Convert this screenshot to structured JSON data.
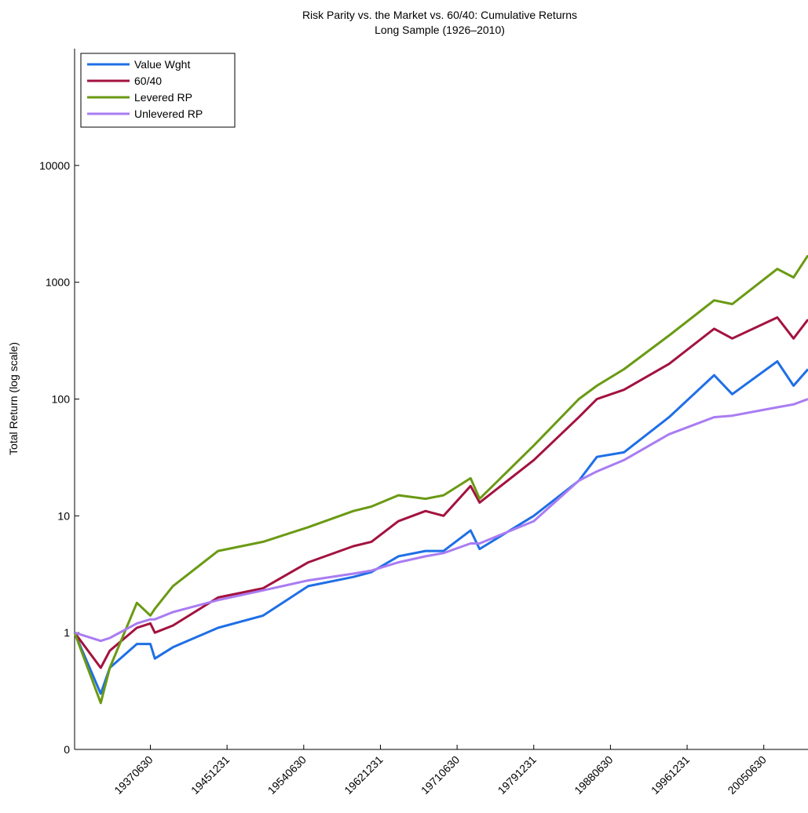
{
  "chart_data": {
    "type": "line",
    "title": "Risk Parity vs. the Market vs. 60/40: Cumulative Returns",
    "subtitle": "Long Sample (1926–2010)",
    "y_label": "Total Return (log scale)",
    "log_scale": true,
    "legend": "upper-left",
    "x": [
      1929.1,
      1932,
      1933,
      1936,
      1937.5,
      1938,
      1940,
      1945,
      1950,
      1955,
      1960,
      1962,
      1965,
      1968,
      1970,
      1973,
      1974,
      1980,
      1985,
      1987,
      1990,
      1995,
      2000,
      2002,
      2007,
      2008.8,
      2010.4
    ],
    "series": [
      {
        "name": "Value Wght",
        "color": "#1f6fe6",
        "values": [
          1,
          0.3,
          0.5,
          0.8,
          0.8,
          0.6,
          0.75,
          1.1,
          1.4,
          2.5,
          3,
          3.3,
          4.5,
          5,
          5,
          7.5,
          5.2,
          10,
          20,
          32,
          35,
          70,
          160,
          110,
          210,
          130,
          180
        ]
      },
      {
        "name": "60/40",
        "color": "#a3123f",
        "values": [
          1,
          0.5,
          0.7,
          1.1,
          1.2,
          1,
          1.15,
          2,
          2.4,
          4,
          5.5,
          6,
          9,
          11,
          10,
          18,
          13,
          30,
          70,
          100,
          120,
          200,
          400,
          330,
          500,
          330,
          480
        ]
      },
      {
        "name": "Levered RP",
        "color": "#6a9a13",
        "values": [
          1,
          0.25,
          0.5,
          1.8,
          1.4,
          1.6,
          2.5,
          5,
          6,
          8,
          11,
          12,
          15,
          14,
          15,
          21,
          14,
          40,
          100,
          130,
          180,
          350,
          700,
          650,
          1300,
          1100,
          1700
        ]
      },
      {
        "name": "Unlevered RP",
        "color": "#a97cf2",
        "values": [
          1,
          0.85,
          0.9,
          1.2,
          1.3,
          1.3,
          1.5,
          1.9,
          2.3,
          2.8,
          3.2,
          3.4,
          4,
          4.5,
          4.8,
          5.8,
          5.8,
          9,
          20,
          24,
          30,
          50,
          70,
          72,
          85,
          90,
          100
        ]
      }
    ],
    "xlim": [
      1929.1,
      2010.4
    ],
    "xticks": [
      {
        "value": 1937.5,
        "label": "19370630"
      },
      {
        "value": 1946,
        "label": "19451231"
      },
      {
        "value": 1954.5,
        "label": "19540630"
      },
      {
        "value": 1963,
        "label": "19621231"
      },
      {
        "value": 1971.5,
        "label": "19710630"
      },
      {
        "value": 1980,
        "label": "19791231"
      },
      {
        "value": 1988.5,
        "label": "19880630"
      },
      {
        "value": 1997,
        "label": "19961231"
      },
      {
        "value": 2005.5,
        "label": "20050630"
      }
    ],
    "ylim": [
      0.1,
      100000
    ],
    "yticks": [
      {
        "value": 0.1,
        "label": "0"
      },
      1,
      10,
      100,
      1000,
      10000
    ]
  }
}
